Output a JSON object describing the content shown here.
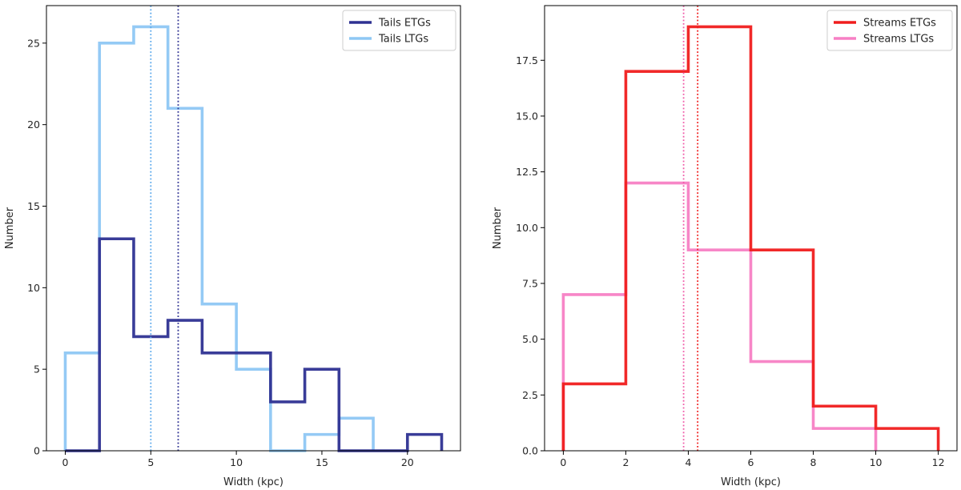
{
  "chart_data": [
    {
      "type": "histogram-step",
      "title": "",
      "xlabel": "Width (kpc)",
      "ylabel": "Number",
      "xlim": [
        -1.1,
        23.1
      ],
      "ylim": [
        0,
        27.3
      ],
      "xticks": [
        0,
        5,
        10,
        15,
        20
      ],
      "yticks": [
        0,
        5,
        10,
        15,
        20,
        25
      ],
      "legend_position": "top-right",
      "series": [
        {
          "name": "Tails ETGs",
          "color": "#2e3192",
          "bin_edges": [
            0,
            2,
            4,
            6,
            8,
            10,
            12,
            14,
            16,
            18,
            20,
            22
          ],
          "counts": [
            0,
            13,
            7,
            8,
            6,
            6,
            3,
            5,
            0,
            0,
            1
          ],
          "median": 6.6
        },
        {
          "name": "Tails LTGs",
          "color": "#8ec7f4",
          "bin_edges": [
            0,
            2,
            4,
            6,
            8,
            10,
            12,
            14,
            16,
            18
          ],
          "counts": [
            6,
            25,
            26,
            21,
            9,
            5,
            0,
            1,
            2
          ],
          "median": 5.0
        }
      ],
      "median_line_colors": [
        "#2e3192",
        "#5aa8ec"
      ]
    },
    {
      "type": "histogram-step",
      "title": "",
      "xlabel": "Width (kpc)",
      "ylabel": "Number",
      "xlim": [
        -0.6,
        12.6
      ],
      "ylim": [
        0,
        19.95
      ],
      "xticks": [
        0,
        2,
        4,
        6,
        8,
        10,
        12
      ],
      "yticks": [
        0.0,
        2.5,
        5.0,
        7.5,
        10.0,
        12.5,
        15.0,
        17.5
      ],
      "ytick_labels": [
        "0.0",
        "2.5",
        "5.0",
        "7.5",
        "10.0",
        "12.5",
        "15.0",
        "17.5"
      ],
      "legend_position": "top-right",
      "series": [
        {
          "name": "Streams ETGs",
          "color": "#f01d1d",
          "bin_edges": [
            0,
            2,
            4,
            6,
            8,
            10,
            12
          ],
          "counts": [
            3,
            17,
            19,
            9,
            2,
            1
          ],
          "median": 4.3
        },
        {
          "name": "Streams LTGs",
          "color": "#f77fc4",
          "bin_edges": [
            0,
            2,
            4,
            6,
            8,
            10
          ],
          "counts": [
            7,
            12,
            9,
            4,
            1
          ],
          "median": 3.85
        }
      ],
      "median_line_colors": [
        "#f01d1d",
        "#f05aa8"
      ]
    }
  ]
}
